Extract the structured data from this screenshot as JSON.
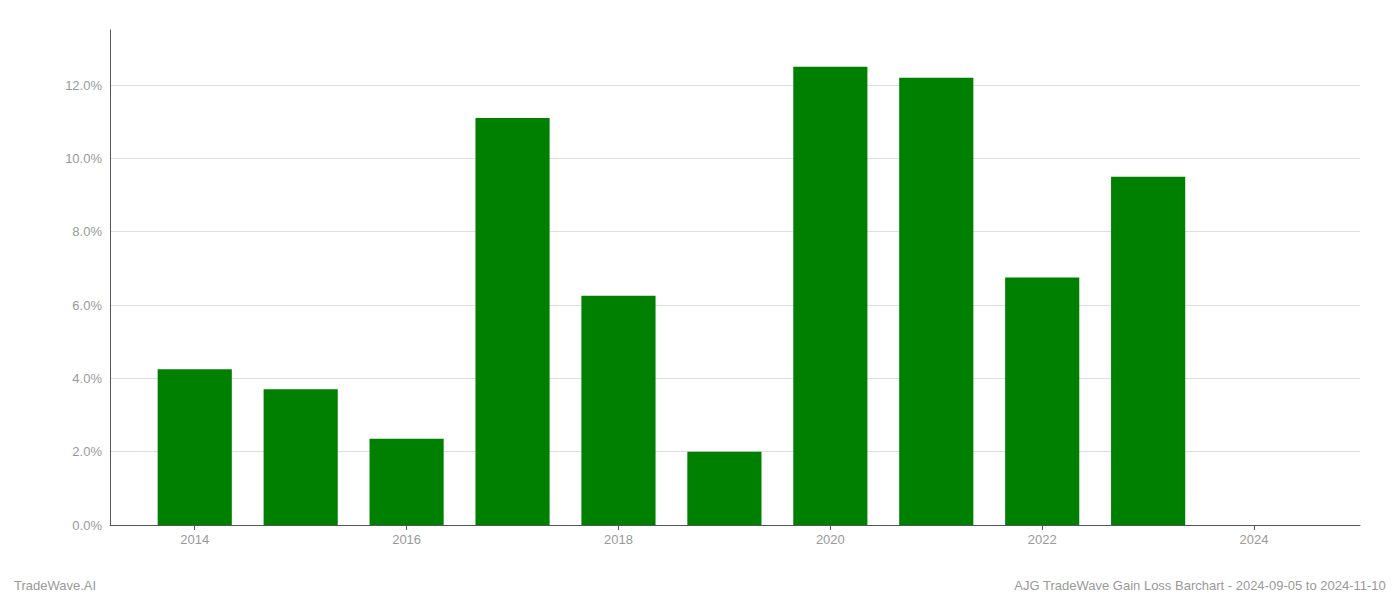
{
  "chart_data": {
    "type": "bar",
    "x": [
      2014,
      2015,
      2016,
      2017,
      2018,
      2019,
      2020,
      2021,
      2022,
      2023
    ],
    "values": [
      0.0425,
      0.037,
      0.0235,
      0.111,
      0.0625,
      0.02,
      0.125,
      0.122,
      0.0675,
      0.095
    ],
    "color": "#008000",
    "xlim": [
      2013.2,
      2025.0
    ],
    "xticks": [
      2014,
      2016,
      2018,
      2020,
      2022,
      2024
    ],
    "ylim": [
      0,
      0.135
    ],
    "yticks": [
      {
        "value": 0,
        "label": "0.0%"
      },
      {
        "value": 0.02,
        "label": "2.0%"
      },
      {
        "value": 0.04,
        "label": "4.0%"
      },
      {
        "value": 0.06,
        "label": "6.0%"
      },
      {
        "value": 0.08,
        "label": "8.0%"
      },
      {
        "value": 0.1,
        "label": "10.0%"
      },
      {
        "value": 0.12,
        "label": "12.0%"
      }
    ],
    "grid": true,
    "annotations": [
      "TradeWave.AI",
      "AJG TradeWave Gain Loss Barchart - 2024-09-05 to 2024-11-10"
    ]
  }
}
